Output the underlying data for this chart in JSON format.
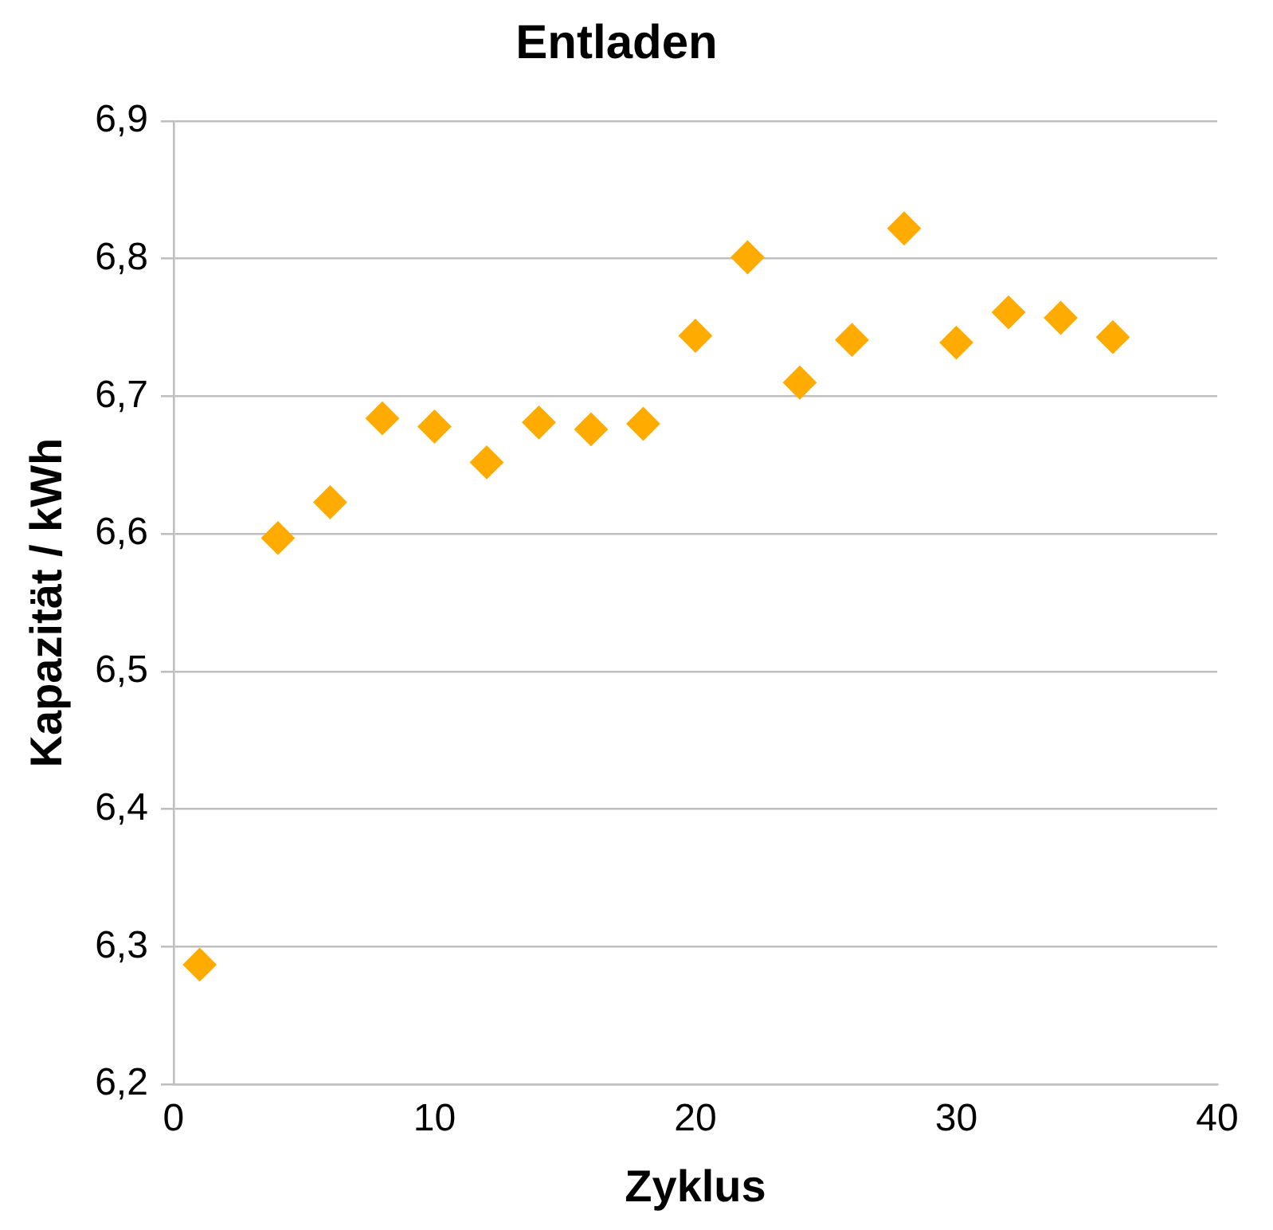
{
  "chart_data": {
    "type": "scatter",
    "title": "Entladen",
    "xlabel": "Zyklus",
    "ylabel": "Kapazität / kWh",
    "x": [
      1,
      4,
      6,
      8,
      10,
      12,
      14,
      16,
      18,
      20,
      22,
      24,
      26,
      28,
      30,
      32,
      34,
      36
    ],
    "series": [
      {
        "color": "#ffab00",
        "values": [
          6.287,
          6.597,
          6.623,
          6.684,
          6.678,
          6.652,
          6.681,
          6.676,
          6.68,
          6.744,
          6.801,
          6.71,
          6.741,
          6.822,
          6.739,
          6.761,
          6.757,
          6.743
        ]
      }
    ],
    "xlim": [
      0,
      40
    ],
    "xticks": [
      0,
      10,
      20,
      30,
      40
    ],
    "ylim": [
      6.2,
      6.9
    ],
    "yticks": [
      {
        "value": 6.2,
        "label": "6,2"
      },
      {
        "value": 6.3,
        "label": "6,3"
      },
      {
        "value": 6.4,
        "label": "6,4"
      },
      {
        "value": 6.5,
        "label": "6,5"
      },
      {
        "value": 6.6,
        "label": "6,6"
      },
      {
        "value": 6.7,
        "label": "6,7"
      },
      {
        "value": 6.8,
        "label": "6,8"
      },
      {
        "value": 6.9,
        "label": "6,9"
      }
    ],
    "grid": "y",
    "legend": false,
    "marker": "diamond"
  }
}
